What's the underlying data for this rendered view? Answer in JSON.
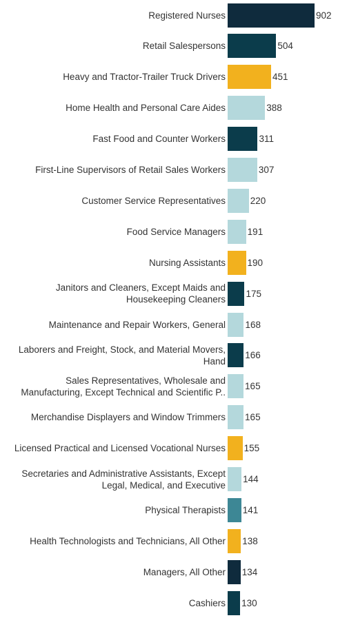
{
  "chart_data": {
    "type": "bar",
    "orientation": "horizontal",
    "categories": [
      "Registered Nurses",
      "Retail Salespersons",
      "Heavy and Tractor-Trailer Truck Drivers",
      "Home Health and Personal Care Aides",
      "Fast Food and Counter Workers",
      "First-Line Supervisors of Retail Sales Workers",
      "Customer Service Representatives",
      "Food Service Managers",
      "Nursing Assistants",
      "Janitors and Cleaners, Except Maids and\nHousekeeping Cleaners",
      "Maintenance and Repair Workers, General",
      "Laborers and Freight, Stock, and Material Movers,\nHand",
      "Sales Representatives, Wholesale and\nManufacturing, Except Technical and Scientific P..",
      "Merchandise Displayers and Window Trimmers",
      "Licensed Practical and Licensed Vocational Nurses",
      "Secretaries and Administrative Assistants, Except\nLegal, Medical, and Executive",
      "Physical Therapists",
      "Health Technologists and Technicians, All Other",
      "Managers, All Other",
      "Cashiers"
    ],
    "values": [
      902,
      504,
      451,
      388,
      311,
      307,
      220,
      191,
      190,
      175,
      168,
      166,
      165,
      165,
      155,
      144,
      141,
      138,
      134,
      130
    ],
    "colors": [
      "#0f2b3d",
      "#0b3c4b",
      "#f2b11e",
      "#b4d8dc",
      "#0b3c4b",
      "#b4d8dc",
      "#b4d8dc",
      "#b4d8dc",
      "#f2b11e",
      "#0b3c4b",
      "#b4d8dc",
      "#0b3c4b",
      "#b4d8dc",
      "#b4d8dc",
      "#f2b11e",
      "#b4d8dc",
      "#3d8795",
      "#f2b11e",
      "#0f2b3d",
      "#0b3c4b"
    ]
  }
}
